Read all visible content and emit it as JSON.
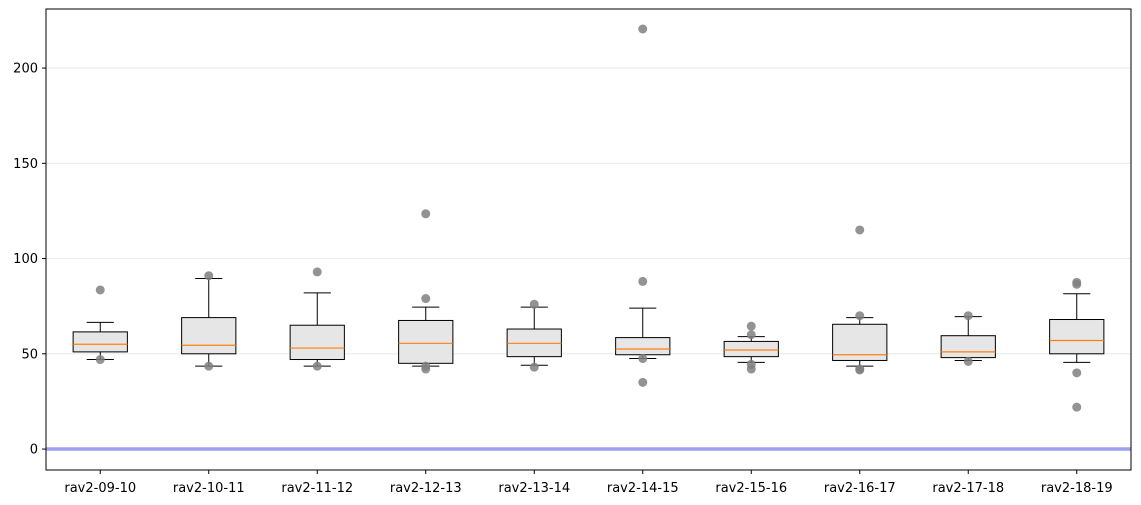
{
  "chart_data": {
    "type": "box",
    "title": "",
    "xlabel": "",
    "ylabel": "",
    "ylim": [
      -11,
      231
    ],
    "yticks": [
      0,
      50,
      100,
      150,
      200
    ],
    "grid": "horizontal",
    "reference_line": {
      "y": 0,
      "color": "#a0a0f0"
    },
    "colors": {
      "box_fill": "#e6e6e6",
      "median": "#ff7f0e",
      "outlier": "#808080",
      "grid": "#ececec"
    },
    "categories": [
      "rav2-09-10",
      "rav2-10-11",
      "rav2-11-12",
      "rav2-12-13",
      "rav2-13-14",
      "rav2-14-15",
      "rav2-15-16",
      "rav2-16-17",
      "rav2-17-18",
      "rav2-18-19"
    ],
    "boxes": [
      {
        "whisker_low": 47,
        "q1": 51,
        "median": 55,
        "q3": 61.5,
        "whisker_high": 66.5,
        "outliers": [
          83.5,
          47
        ]
      },
      {
        "whisker_low": 43.5,
        "q1": 50,
        "median": 54.5,
        "q3": 69,
        "whisker_high": 89.5,
        "outliers": [
          91,
          43.5
        ]
      },
      {
        "whisker_low": 43.5,
        "q1": 47,
        "median": 53,
        "q3": 65,
        "whisker_high": 82,
        "outliers": [
          93,
          43.5
        ]
      },
      {
        "whisker_low": 43.5,
        "q1": 45,
        "median": 55.5,
        "q3": 67.5,
        "whisker_high": 74.5,
        "outliers": [
          123.5,
          79,
          42,
          43.5
        ]
      },
      {
        "whisker_low": 44,
        "q1": 48.5,
        "median": 55.5,
        "q3": 63,
        "whisker_high": 74.5,
        "outliers": [
          76,
          43
        ]
      },
      {
        "whisker_low": 47.5,
        "q1": 49.5,
        "median": 52.5,
        "q3": 58.5,
        "whisker_high": 74,
        "outliers": [
          220.5,
          88,
          47.5,
          35
        ]
      },
      {
        "whisker_low": 45.5,
        "q1": 48.5,
        "median": 52,
        "q3": 56.5,
        "whisker_high": 59,
        "outliers": [
          64.5,
          60,
          44.5,
          42
        ]
      },
      {
        "whisker_low": 43.5,
        "q1": 46.5,
        "median": 49.5,
        "q3": 65.5,
        "whisker_high": 69,
        "outliers": [
          115,
          70,
          42,
          41.5
        ]
      },
      {
        "whisker_low": 46.5,
        "q1": 48,
        "median": 51,
        "q3": 59.5,
        "whisker_high": 69.5,
        "outliers": [
          70,
          46
        ]
      },
      {
        "whisker_low": 45.5,
        "q1": 50,
        "median": 57,
        "q3": 68,
        "whisker_high": 81.5,
        "outliers": [
          87.5,
          86.5,
          40,
          22
        ]
      }
    ]
  }
}
